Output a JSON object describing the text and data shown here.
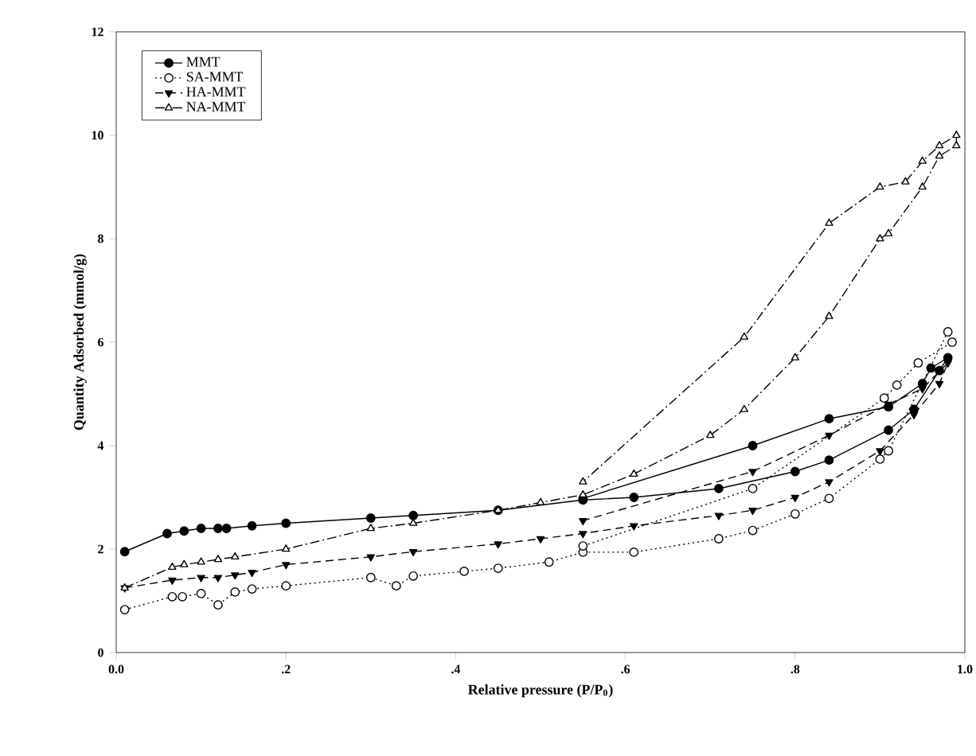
{
  "chart_data": {
    "type": "line",
    "xlabel": "Relative pressure (P/P$_{0}$)",
    "ylabel": "Quantity Adsorbed (mmol/g)",
    "xlim": [
      0,
      1
    ],
    "ylim": [
      0,
      12
    ],
    "xticks": [
      {
        "value": 0,
        "label": "0.0"
      },
      {
        "value": 0.2,
        "label": ".2"
      },
      {
        "value": 0.4,
        "label": ".4"
      },
      {
        "value": 0.6,
        "label": ".6"
      },
      {
        "value": 0.8,
        "label": ".8"
      },
      {
        "value": 1,
        "label": "1.0"
      }
    ],
    "yticks": [
      0,
      2,
      4,
      6,
      8,
      10,
      12
    ],
    "grid": false,
    "legend": "top left",
    "series": [
      {
        "name": "MMT",
        "color": "#000000",
        "marker": "circle",
        "line_style": "solid",
        "x": [
          0.01,
          0.06,
          0.08,
          0.1,
          0.12,
          0.13,
          0.16,
          0.2,
          0.3,
          0.35,
          0.45,
          0.55,
          0.61,
          0.71,
          0.8,
          0.84,
          0.91,
          0.94,
          0.97,
          0.98,
          0.96,
          0.95,
          0.91,
          0.84,
          0.75,
          0.55
        ],
        "values": [
          1.95,
          2.3,
          2.35,
          2.4,
          2.4,
          2.4,
          2.45,
          2.5,
          2.6,
          2.65,
          2.75,
          2.95,
          3.0,
          3.17,
          3.5,
          3.72,
          4.3,
          4.7,
          5.45,
          5.7,
          5.5,
          5.2,
          4.75,
          4.52,
          4.0,
          2.98
        ]
      },
      {
        "name": "SA-MMT",
        "color": "#000000",
        "marker": "circle_open",
        "line_style": "dotted",
        "x": [
          0.01,
          0.066,
          0.078,
          0.1,
          0.12,
          0.14,
          0.16,
          0.2,
          0.3,
          0.33,
          0.35,
          0.41,
          0.45,
          0.51,
          0.55,
          0.61,
          0.71,
          0.75,
          0.8,
          0.84,
          0.9,
          0.91,
          0.98,
          0.985,
          0.945,
          0.92,
          0.905,
          0.75,
          0.55
        ],
        "values": [
          0.83,
          1.08,
          1.08,
          1.14,
          0.92,
          1.17,
          1.23,
          1.29,
          1.45,
          1.29,
          1.48,
          1.57,
          1.63,
          1.75,
          1.94,
          1.94,
          2.2,
          2.36,
          2.68,
          2.98,
          3.74,
          3.9,
          6.2,
          6.0,
          5.6,
          5.17,
          4.92,
          3.17,
          2.06
        ]
      },
      {
        "name": "HA-MMT",
        "color": "#000000",
        "marker": "triangle_down",
        "line_style": "dashed",
        "x": [
          0.01,
          0.066,
          0.1,
          0.12,
          0.14,
          0.16,
          0.2,
          0.3,
          0.35,
          0.45,
          0.5,
          0.55,
          0.61,
          0.71,
          0.75,
          0.8,
          0.84,
          0.9,
          0.94,
          0.97,
          0.98,
          0.95,
          0.91,
          0.84,
          0.75,
          0.55
        ],
        "values": [
          1.25,
          1.4,
          1.45,
          1.45,
          1.5,
          1.55,
          1.7,
          1.85,
          1.95,
          2.1,
          2.2,
          2.3,
          2.45,
          2.65,
          2.75,
          3.0,
          3.3,
          3.9,
          4.6,
          5.2,
          5.6,
          5.1,
          4.8,
          4.2,
          3.5,
          2.55
        ]
      },
      {
        "name": "NA-MMT",
        "color": "#000000",
        "marker": "triangle_open",
        "line_style": "dashdotted",
        "x": [
          0.01,
          0.066,
          0.08,
          0.1,
          0.12,
          0.14,
          0.2,
          0.3,
          0.35,
          0.45,
          0.5,
          0.55,
          0.61,
          0.7,
          0.74,
          0.8,
          0.84,
          0.9,
          0.91,
          0.95,
          0.97,
          0.99,
          0.99,
          0.97,
          0.95,
          0.93,
          0.9,
          0.84,
          0.74,
          0.55
        ],
        "values": [
          1.25,
          1.65,
          1.7,
          1.75,
          1.8,
          1.85,
          2.0,
          2.4,
          2.5,
          2.75,
          2.9,
          3.05,
          3.45,
          4.2,
          4.7,
          5.7,
          6.5,
          8.0,
          8.1,
          9.0,
          9.6,
          9.8,
          10.0,
          9.8,
          9.5,
          9.1,
          9.0,
          8.3,
          6.1,
          3.3
        ]
      }
    ]
  }
}
